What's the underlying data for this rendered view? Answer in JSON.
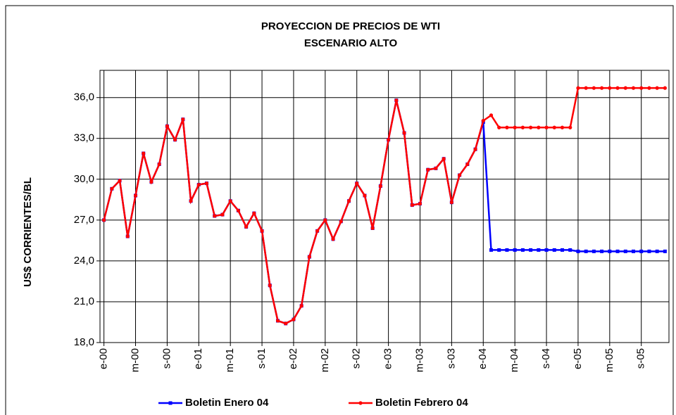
{
  "chart_data": {
    "type": "line",
    "title": "PROYECCION DE PRECIOS DE WTI",
    "subtitle": "ESCENARIO ALTO",
    "y_label": "US$ CORRIENTES/BL",
    "categories": [
      "e-00",
      null,
      null,
      null,
      "m-00",
      null,
      null,
      null,
      "s-00",
      null,
      null,
      null,
      "e-01",
      null,
      null,
      null,
      "m-01",
      null,
      null,
      null,
      "s-01",
      null,
      null,
      null,
      "e-02",
      null,
      null,
      null,
      "m-02",
      null,
      null,
      null,
      "s-02",
      null,
      null,
      null,
      "e-03",
      null,
      null,
      null,
      "m-03",
      null,
      null,
      null,
      "s-03",
      null,
      null,
      null,
      "e-04",
      null,
      null,
      null,
      "m-04",
      null,
      null,
      null,
      "s-04",
      null,
      null,
      null,
      "e-05",
      null,
      null,
      null,
      "m-05",
      null,
      null,
      null,
      "s-05",
      null,
      null,
      null
    ],
    "series": [
      {
        "name": "Boletin Enero 04",
        "color": "#0000ff",
        "marker": "square",
        "values": [
          27.0,
          29.3,
          29.9,
          25.8,
          28.8,
          31.9,
          29.8,
          31.1,
          33.9,
          32.9,
          34.4,
          28.4,
          29.6,
          29.7,
          27.3,
          27.4,
          28.4,
          27.7,
          26.5,
          27.5,
          26.2,
          22.2,
          19.6,
          19.4,
          19.7,
          20.7,
          24.3,
          26.2,
          27.0,
          25.6,
          26.9,
          28.4,
          29.7,
          28.8,
          26.4,
          29.5,
          32.9,
          35.8,
          33.4,
          28.1,
          28.2,
          30.7,
          30.8,
          31.5,
          28.3,
          30.3,
          31.1,
          32.2,
          34.2,
          24.8,
          24.8,
          24.8,
          24.8,
          24.8,
          24.8,
          24.8,
          24.8,
          24.8,
          24.8,
          24.8,
          24.7,
          24.7,
          24.7,
          24.7,
          24.7,
          24.7,
          24.7,
          24.7,
          24.7,
          24.7,
          24.7,
          24.7
        ]
      },
      {
        "name": "Boletin Febrero 04",
        "color": "#ff0000",
        "marker": "circle",
        "values": [
          27.0,
          29.3,
          29.9,
          25.8,
          28.8,
          31.9,
          29.8,
          31.1,
          33.9,
          32.9,
          34.4,
          28.4,
          29.6,
          29.7,
          27.3,
          27.4,
          28.4,
          27.7,
          26.5,
          27.5,
          26.2,
          22.2,
          19.6,
          19.4,
          19.7,
          20.7,
          24.3,
          26.2,
          27.0,
          25.6,
          26.9,
          28.4,
          29.7,
          28.8,
          26.4,
          29.5,
          32.9,
          35.8,
          33.4,
          28.1,
          28.2,
          30.7,
          30.8,
          31.5,
          28.3,
          30.3,
          31.1,
          32.2,
          34.3,
          34.7,
          33.8,
          33.8,
          33.8,
          33.8,
          33.8,
          33.8,
          33.8,
          33.8,
          33.8,
          33.8,
          36.7,
          36.7,
          36.7,
          36.7,
          36.7,
          36.7,
          36.7,
          36.7,
          36.7,
          36.7,
          36.7,
          36.7
        ]
      }
    ],
    "ylim": [
      18,
      38
    ],
    "yticks": [
      {
        "value": 18,
        "label": "18,0"
      },
      {
        "value": 21,
        "label": "21,0"
      },
      {
        "value": 24,
        "label": "24,0"
      },
      {
        "value": 27,
        "label": "27,0"
      },
      {
        "value": 30,
        "label": "30,0"
      },
      {
        "value": 33,
        "label": "33,0"
      },
      {
        "value": 36,
        "label": "36,0"
      }
    ],
    "grid": true,
    "legend": "bottom"
  }
}
